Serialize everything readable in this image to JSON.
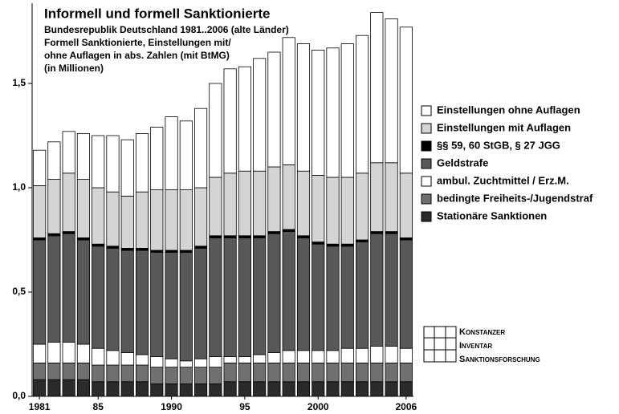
{
  "chart_data": {
    "type": "stacked_bar",
    "title": "Informell und formell Sanktionierte",
    "subtitle": [
      "Bundesrepublik Deutschland 1981..2006 (alte Länder)",
      "Formell Sanktionierte, Einstellungen mit/",
      "ohne Auflagen in abs. Zahlen (mit BtMG)",
      "(in Millionen)"
    ],
    "categories": [
      "1981",
      null,
      null,
      null,
      "85",
      null,
      null,
      null,
      null,
      "1990",
      null,
      null,
      null,
      null,
      "95",
      null,
      null,
      null,
      null,
      "2000",
      null,
      null,
      null,
      null,
      null,
      "2006"
    ],
    "series": [
      {
        "name": "Stationäre Sanktionen",
        "color": "#2b2b2b",
        "values": [
          0.08,
          0.08,
          0.08,
          0.08,
          0.07,
          0.07,
          0.07,
          0.07,
          0.06,
          0.06,
          0.06,
          0.06,
          0.06,
          0.07,
          0.07,
          0.07,
          0.07,
          0.07,
          0.07,
          0.07,
          0.07,
          0.07,
          0.07,
          0.07,
          0.07,
          0.07
        ]
      },
      {
        "name": "bedingte Freiheits-/Jugendstraf",
        "color": "#707070",
        "values": [
          0.08,
          0.08,
          0.08,
          0.08,
          0.08,
          0.08,
          0.08,
          0.08,
          0.08,
          0.08,
          0.08,
          0.08,
          0.08,
          0.09,
          0.09,
          0.09,
          0.09,
          0.09,
          0.09,
          0.09,
          0.09,
          0.09,
          0.09,
          0.09,
          0.09,
          0.09
        ]
      },
      {
        "name": "ambul. Zuchtmittel / Erz.M.",
        "color": "#ffffff",
        "values": [
          0.09,
          0.1,
          0.1,
          0.09,
          0.08,
          0.07,
          0.06,
          0.05,
          0.05,
          0.04,
          0.03,
          0.04,
          0.05,
          0.03,
          0.03,
          0.04,
          0.05,
          0.06,
          0.06,
          0.06,
          0.06,
          0.07,
          0.07,
          0.08,
          0.08,
          0.07
        ]
      },
      {
        "name": "Geldstrafe",
        "color": "#585858",
        "values": [
          0.5,
          0.51,
          0.52,
          0.5,
          0.49,
          0.49,
          0.49,
          0.5,
          0.5,
          0.51,
          0.52,
          0.53,
          0.57,
          0.57,
          0.57,
          0.56,
          0.57,
          0.57,
          0.54,
          0.51,
          0.5,
          0.49,
          0.51,
          0.54,
          0.54,
          0.52
        ]
      },
      {
        "name": "§§ 59, 60 StGB, § 27 JGG",
        "color": "#000000",
        "values": [
          0.01,
          0.01,
          0.01,
          0.01,
          0.01,
          0.01,
          0.01,
          0.01,
          0.01,
          0.01,
          0.01,
          0.01,
          0.01,
          0.01,
          0.01,
          0.01,
          0.01,
          0.01,
          0.01,
          0.01,
          0.01,
          0.01,
          0.01,
          0.01,
          0.01,
          0.01
        ]
      },
      {
        "name": "Einstellungen mit Auflagen",
        "color": "#d4d4d4",
        "values": [
          0.25,
          0.26,
          0.28,
          0.28,
          0.27,
          0.26,
          0.25,
          0.27,
          0.29,
          0.29,
          0.29,
          0.28,
          0.28,
          0.3,
          0.31,
          0.31,
          0.31,
          0.31,
          0.31,
          0.32,
          0.32,
          0.32,
          0.32,
          0.33,
          0.33,
          0.31
        ]
      },
      {
        "name": "Einstellungen ohne Auflagen",
        "color": "#ffffff",
        "values": [
          0.17,
          0.18,
          0.2,
          0.22,
          0.25,
          0.27,
          0.27,
          0.28,
          0.3,
          0.35,
          0.33,
          0.38,
          0.45,
          0.5,
          0.5,
          0.54,
          0.55,
          0.61,
          0.61,
          0.6,
          0.62,
          0.64,
          0.66,
          0.72,
          0.69,
          0.7
        ]
      }
    ],
    "ylim": [
      0,
      1.9
    ],
    "yticks": [
      {
        "value": 0,
        "label": "0,0"
      },
      {
        "value": 0.5,
        "label": "0,5"
      },
      {
        "value": 1.0,
        "label": "1,0"
      },
      {
        "value": 1.5,
        "label": "1,5"
      }
    ],
    "logo": [
      "Konstanzer",
      "Inventar",
      "Sanktionsforschung"
    ]
  }
}
